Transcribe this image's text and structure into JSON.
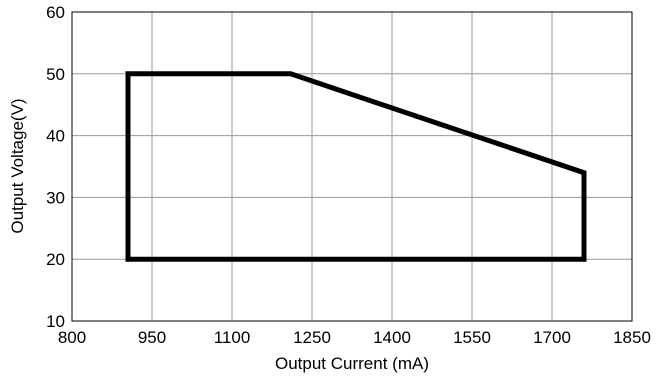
{
  "chart_data": {
    "type": "line",
    "xlabel": "Output Current (mA)",
    "ylabel": "Output Voltage(V)",
    "xlim": [
      800,
      1850
    ],
    "ylim": [
      10,
      60
    ],
    "xticks": [
      800,
      950,
      1100,
      1250,
      1400,
      1550,
      1700,
      1850
    ],
    "yticks": [
      10,
      20,
      30,
      40,
      50,
      60
    ],
    "grid": true,
    "series": [
      {
        "closed": true,
        "color": "#000000",
        "points": [
          {
            "x": 905,
            "y": 20
          },
          {
            "x": 905,
            "y": 50
          },
          {
            "x": 1210,
            "y": 50
          },
          {
            "x": 1760,
            "y": 34
          },
          {
            "x": 1760,
            "y": 20
          }
        ]
      }
    ]
  },
  "colors": {
    "grid": "#9a9a9a",
    "frame": "#000000",
    "series": "#000000"
  }
}
